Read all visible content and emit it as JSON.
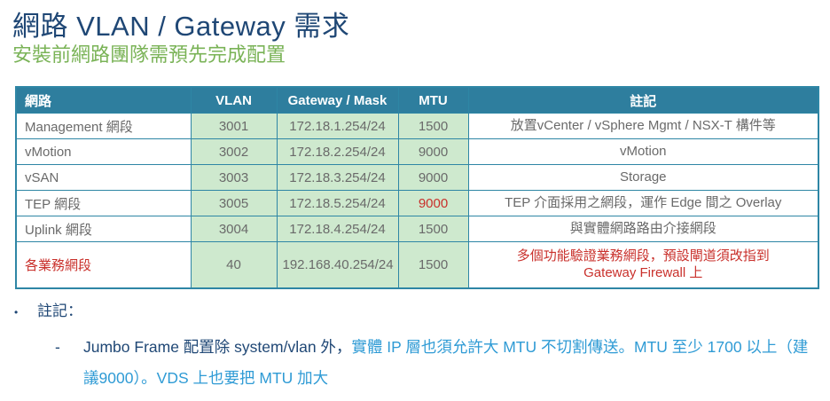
{
  "header": {
    "title": "網路 VLAN / Gateway 需求",
    "subtitle": "安裝前網路團隊需預先完成配置"
  },
  "table": {
    "columns": [
      "網路",
      "VLAN",
      "Gateway / Mask",
      "MTU",
      "註記"
    ],
    "rows": [
      {
        "name": "Management 網段",
        "vlan": "3001",
        "gateway": "172.18.1.254/24",
        "mtu": "1500",
        "note": "放置vCenter / vSphere Mgmt / NSX-T 構件等",
        "name_red": false,
        "mtu_red": false,
        "note_red": false
      },
      {
        "name": "vMotion",
        "vlan": "3002",
        "gateway": "172.18.2.254/24",
        "mtu": "9000",
        "note": "vMotion",
        "name_red": false,
        "mtu_red": false,
        "note_red": false
      },
      {
        "name": "vSAN",
        "vlan": "3003",
        "gateway": "172.18.3.254/24",
        "mtu": "9000",
        "note": "Storage",
        "name_red": false,
        "mtu_red": false,
        "note_red": false
      },
      {
        "name": "TEP 網段",
        "vlan": "3005",
        "gateway": "172.18.5.254/24",
        "mtu": "9000",
        "note": "TEP 介面採用之網段，運作 Edge 間之 Overlay",
        "name_red": false,
        "mtu_red": true,
        "note_red": false
      },
      {
        "name": "Uplink 網段",
        "vlan": "3004",
        "gateway": "172.18.4.254/24",
        "mtu": "1500",
        "note": "與實體網路路由介接網段",
        "name_red": false,
        "mtu_red": false,
        "note_red": false
      },
      {
        "name": "各業務網段",
        "vlan": "40",
        "gateway": "192.168.40.254/24",
        "mtu": "1500",
        "note": "多個功能驗證業務網段，預設閘道須改指到\nGateway Firewall 上",
        "name_red": true,
        "mtu_red": false,
        "note_red": true
      }
    ]
  },
  "notes": {
    "bullet": "•",
    "heading": "註記：",
    "dash": "-",
    "item_dark": "Jumbo Frame 配置除 system/vlan 外，",
    "item_light": "實體 IP 層也須允許大 MTU 不切割傳送。MTU 至少 1700 以上（建議9000）。VDS 上也要把 MTU 加大"
  },
  "colors": {
    "title_navy": "#1F4775",
    "subtitle_green": "#7AB357",
    "header_teal": "#2E7E9E",
    "header_text": "#FFFFFF",
    "cell_green": "#CEE9CE",
    "border_teal": "#2E86A5",
    "text_gray": "#6A6A6A",
    "alert_red": "#C9302B",
    "note_blue": "#2F9BD5"
  }
}
